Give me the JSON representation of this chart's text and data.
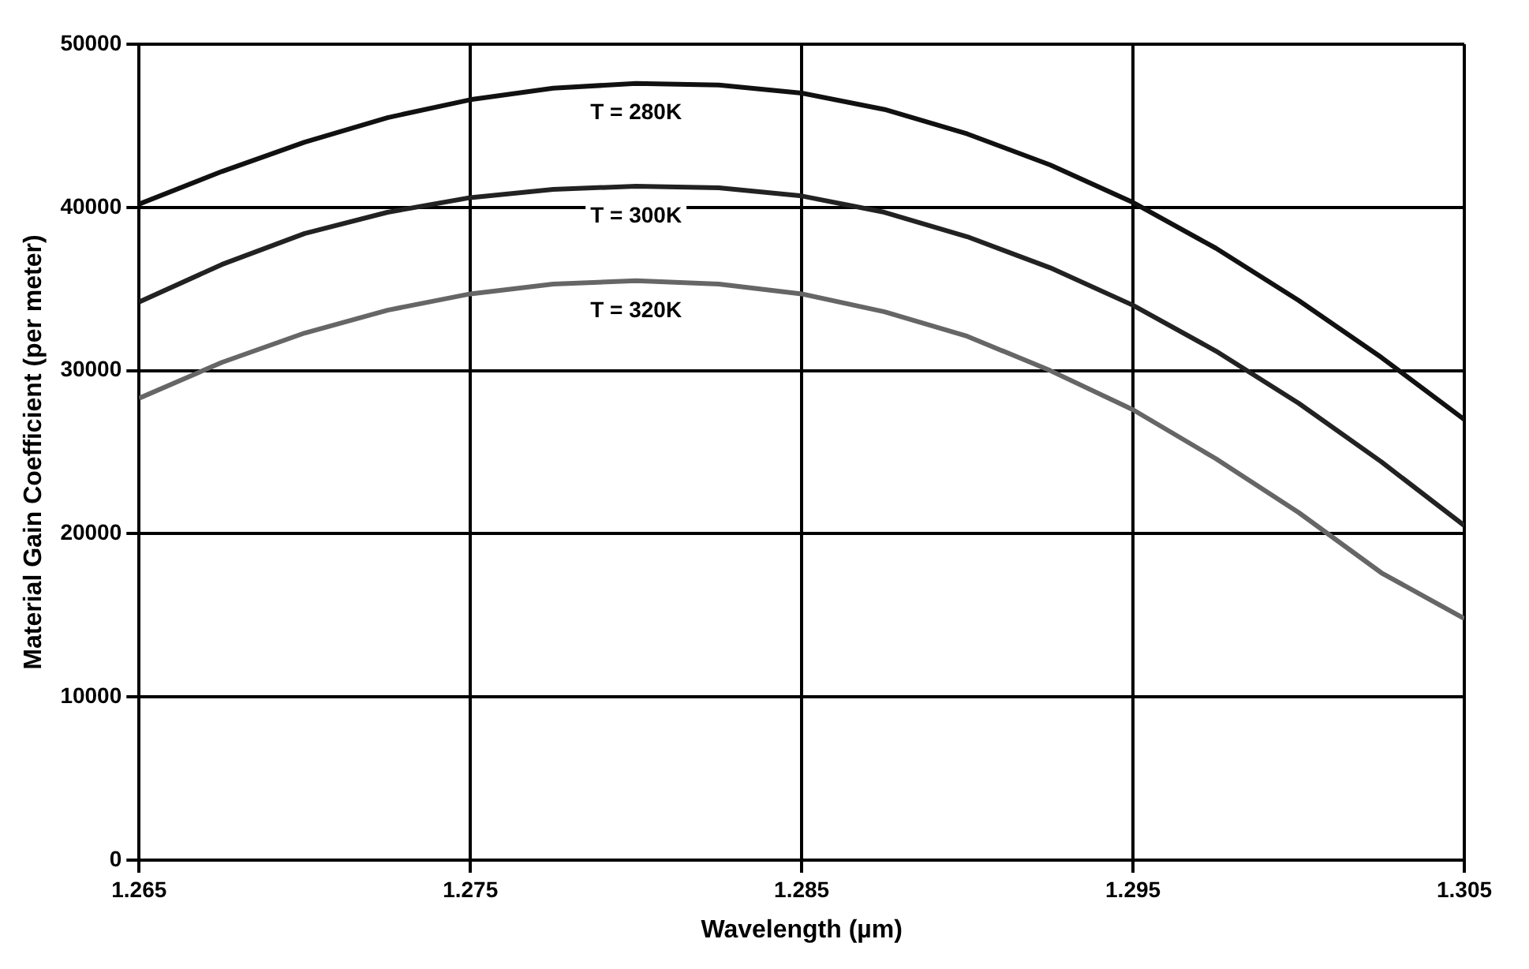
{
  "chart_data": {
    "type": "line",
    "xlabel": "Wavelength (µm)",
    "ylabel": "Material Gain Coefficient (per meter)",
    "x": [
      1.265,
      1.2675,
      1.27,
      1.2725,
      1.275,
      1.2775,
      1.28,
      1.2825,
      1.285,
      1.2875,
      1.29,
      1.2925,
      1.295,
      1.2975,
      1.3,
      1.3025,
      1.305
    ],
    "series": [
      {
        "name": "T = 280K",
        "color": "#111111",
        "values": [
          40200,
          42200,
          44000,
          45500,
          46600,
          47300,
          47600,
          47500,
          47000,
          46000,
          44500,
          42600,
          40300,
          37500,
          34300,
          30800,
          27000
        ]
      },
      {
        "name": "T = 300K",
        "color": "#222222",
        "values": [
          34200,
          36500,
          38400,
          39700,
          40600,
          41100,
          41300,
          41200,
          40700,
          39700,
          38200,
          36300,
          34000,
          31200,
          28000,
          24400,
          20500
        ]
      },
      {
        "name": "T = 320K",
        "color": "#666666",
        "values": [
          28300,
          30500,
          32300,
          33700,
          34700,
          35300,
          35500,
          35300,
          34700,
          33600,
          32100,
          30000,
          27600,
          24600,
          21300,
          17600,
          14800
        ]
      }
    ],
    "xlim": [
      1.265,
      1.305
    ],
    "xticks": [
      1.265,
      1.275,
      1.285,
      1.295,
      1.305
    ],
    "ylim": [
      0,
      50000
    ],
    "yticks": [
      0,
      10000,
      20000,
      30000,
      40000,
      50000
    ],
    "grid": true,
    "legend": false,
    "marker": "none",
    "line_style": "solid"
  }
}
